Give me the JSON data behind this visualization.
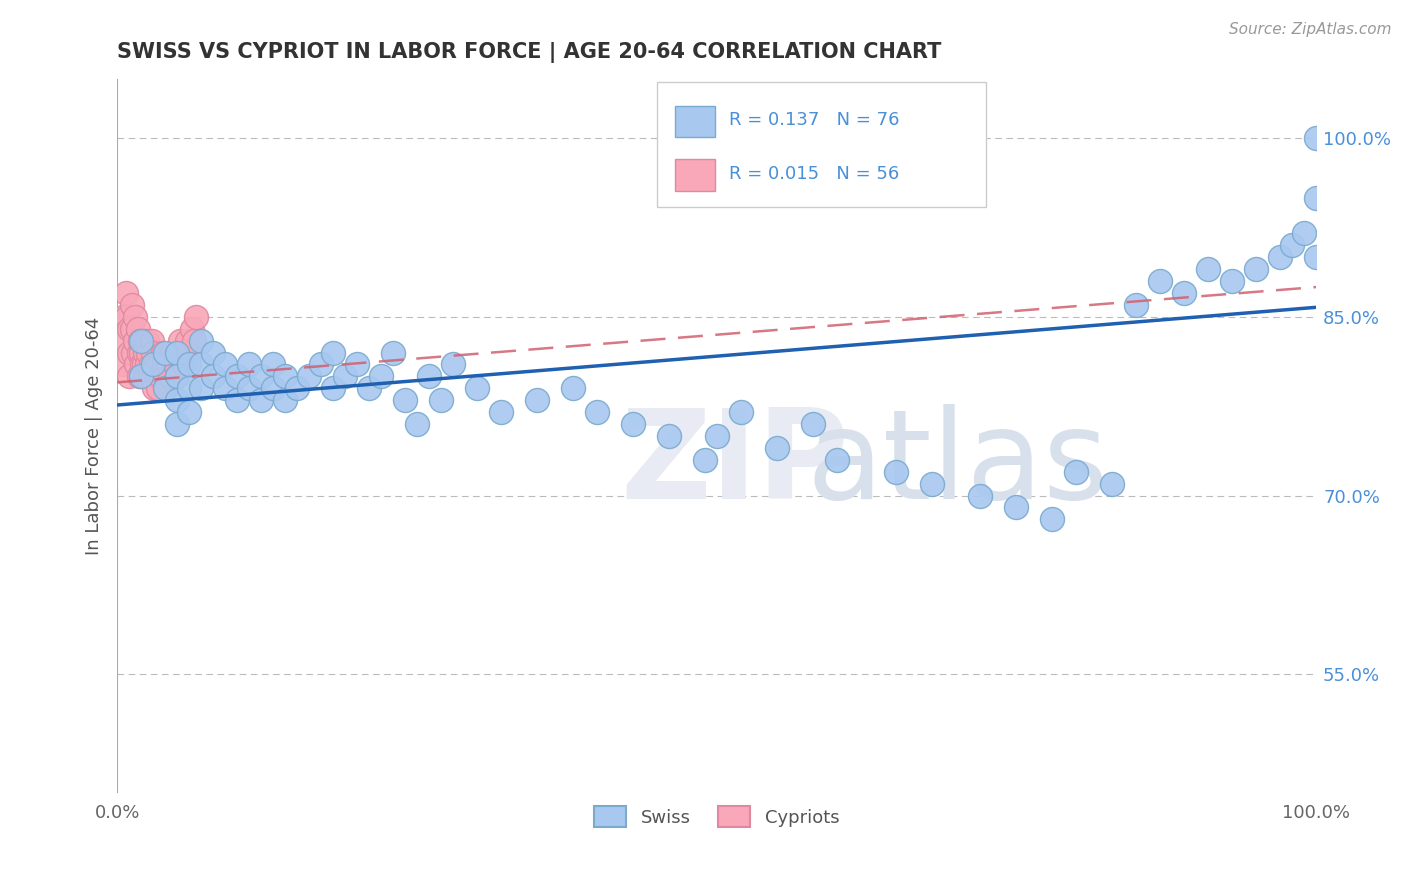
{
  "title": "SWISS VS CYPRIOT IN LABOR FORCE | AGE 20-64 CORRELATION CHART",
  "source": "Source: ZipAtlas.com",
  "ylabel": "In Labor Force | Age 20-64",
  "xlim": [
    0.0,
    1.0
  ],
  "ylim": [
    0.45,
    1.05
  ],
  "yticks": [
    0.55,
    0.7,
    0.85,
    1.0
  ],
  "ytick_labels": [
    "55.0%",
    "70.0%",
    "85.0%",
    "100.0%"
  ],
  "xtick_labels": [
    "0.0%",
    "100.0%"
  ],
  "xticks": [
    0.0,
    1.0
  ],
  "R_swiss": 0.137,
  "N_swiss": 76,
  "R_cypriot": 0.015,
  "N_cypriot": 56,
  "swiss_color": "#a8c8f0",
  "cypriot_color": "#f8a8b8",
  "swiss_line_color": "#2060b0",
  "cypriot_line_color": "#d06070",
  "background_color": "#ffffff",
  "grid_color": "#bbbbbb",
  "title_color": "#333333",
  "axis_label_color": "#555555",
  "tick_label_color_right": "#4a90d9",
  "swiss_x": [
    0.02,
    0.02,
    0.03,
    0.04,
    0.04,
    0.05,
    0.05,
    0.05,
    0.05,
    0.06,
    0.06,
    0.06,
    0.07,
    0.07,
    0.07,
    0.08,
    0.08,
    0.09,
    0.09,
    0.1,
    0.1,
    0.11,
    0.11,
    0.12,
    0.12,
    0.13,
    0.13,
    0.14,
    0.14,
    0.15,
    0.16,
    0.17,
    0.18,
    0.18,
    0.19,
    0.2,
    0.21,
    0.22,
    0.23,
    0.24,
    0.25,
    0.26,
    0.27,
    0.28,
    0.3,
    0.32,
    0.35,
    0.38,
    0.4,
    0.43,
    0.46,
    0.49,
    0.5,
    0.52,
    0.55,
    0.58,
    0.6,
    0.65,
    0.68,
    0.72,
    0.75,
    0.78,
    0.8,
    0.83,
    0.85,
    0.87,
    0.89,
    0.91,
    0.93,
    0.95,
    0.97,
    0.98,
    0.99,
    1.0,
    1.0,
    1.0
  ],
  "swiss_y": [
    0.83,
    0.8,
    0.81,
    0.82,
    0.79,
    0.82,
    0.8,
    0.78,
    0.76,
    0.81,
    0.79,
    0.77,
    0.83,
    0.81,
    0.79,
    0.82,
    0.8,
    0.81,
    0.79,
    0.8,
    0.78,
    0.81,
    0.79,
    0.8,
    0.78,
    0.81,
    0.79,
    0.8,
    0.78,
    0.79,
    0.8,
    0.81,
    0.82,
    0.79,
    0.8,
    0.81,
    0.79,
    0.8,
    0.82,
    0.78,
    0.76,
    0.8,
    0.78,
    0.81,
    0.79,
    0.77,
    0.78,
    0.79,
    0.77,
    0.76,
    0.75,
    0.73,
    0.75,
    0.77,
    0.74,
    0.76,
    0.73,
    0.72,
    0.71,
    0.7,
    0.69,
    0.68,
    0.72,
    0.71,
    0.86,
    0.88,
    0.87,
    0.89,
    0.88,
    0.89,
    0.9,
    0.91,
    0.92,
    1.0,
    0.9,
    0.95
  ],
  "cypriot_x": [
    0.005,
    0.005,
    0.005,
    0.007,
    0.008,
    0.01,
    0.01,
    0.01,
    0.012,
    0.012,
    0.013,
    0.015,
    0.015,
    0.016,
    0.017,
    0.018,
    0.018,
    0.019,
    0.02,
    0.02,
    0.021,
    0.022,
    0.022,
    0.023,
    0.024,
    0.025,
    0.025,
    0.026,
    0.027,
    0.028,
    0.029,
    0.03,
    0.03,
    0.031,
    0.032,
    0.033,
    0.034,
    0.035,
    0.036,
    0.038,
    0.039,
    0.04,
    0.041,
    0.042,
    0.044,
    0.046,
    0.048,
    0.05,
    0.052,
    0.054,
    0.056,
    0.058,
    0.06,
    0.062,
    0.064,
    0.066
  ],
  "cypriot_y": [
    0.85,
    0.83,
    0.81,
    0.87,
    0.85,
    0.84,
    0.82,
    0.8,
    0.86,
    0.84,
    0.82,
    0.85,
    0.83,
    0.81,
    0.84,
    0.82,
    0.8,
    0.83,
    0.82,
    0.8,
    0.81,
    0.83,
    0.81,
    0.82,
    0.8,
    0.83,
    0.81,
    0.82,
    0.8,
    0.81,
    0.83,
    0.82,
    0.8,
    0.79,
    0.81,
    0.8,
    0.79,
    0.81,
    0.8,
    0.82,
    0.81,
    0.8,
    0.79,
    0.81,
    0.8,
    0.82,
    0.81,
    0.8,
    0.83,
    0.82,
    0.81,
    0.83,
    0.82,
    0.84,
    0.83,
    0.85
  ]
}
